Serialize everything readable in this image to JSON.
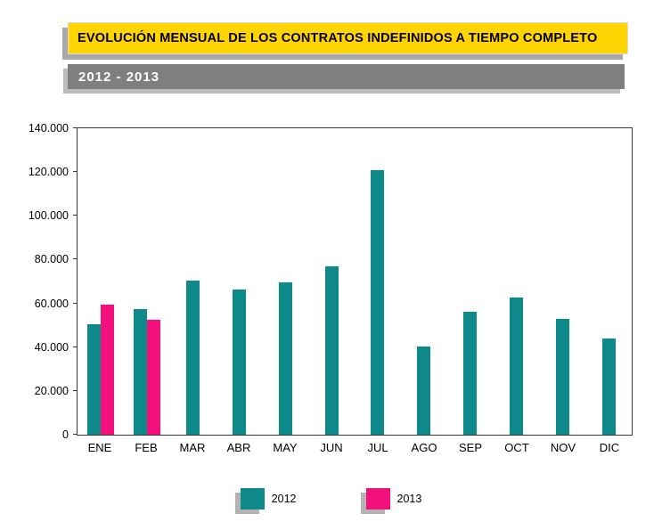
{
  "header": {
    "title": "EVOLUCIÓN MENSUAL DE LOS CONTRATOS INDEFINIDOS A TIEMPO COMPLETO",
    "subtitle": "2012 - 2013"
  },
  "colors": {
    "series_2012": "#0e8a8a",
    "series_2013": "#f2107c",
    "title_background": "#FFD403",
    "subtitle_background": "#7f7f7f",
    "shadow": "#b3b3b3"
  },
  "chart_data": {
    "type": "bar",
    "title": "EVOLUCIÓN MENSUAL DE LOS CONTRATOS INDEFINIDOS A TIEMPO COMPLETO",
    "subtitle": "2012 - 2013",
    "categories": [
      "ENE",
      "FEB",
      "MAR",
      "ABR",
      "MAY",
      "JUN",
      "JUL",
      "AGO",
      "SEP",
      "OCT",
      "NOV",
      "DIC"
    ],
    "series": [
      {
        "name": "2012",
        "color": "#0e8a8a",
        "values": [
          50500,
          57500,
          70500,
          66500,
          69500,
          77000,
          121000,
          40500,
          56000,
          62500,
          53000,
          44000
        ]
      },
      {
        "name": "2013",
        "color": "#f2107c",
        "values": [
          59500,
          52500,
          null,
          null,
          null,
          null,
          null,
          null,
          null,
          null,
          null,
          null
        ]
      }
    ],
    "ylim": [
      0,
      140000
    ],
    "ytick_interval": 20000,
    "ytick_labels": [
      "0",
      "20.000",
      "40.000",
      "60.000",
      "80.000",
      "100.000",
      "120.000",
      "140.000"
    ],
    "grid": false,
    "legend_position": "bottom"
  },
  "legend": {
    "items": [
      {
        "label": "2012",
        "color": "#0e8a8a"
      },
      {
        "label": "2013",
        "color": "#f2107c"
      }
    ]
  }
}
